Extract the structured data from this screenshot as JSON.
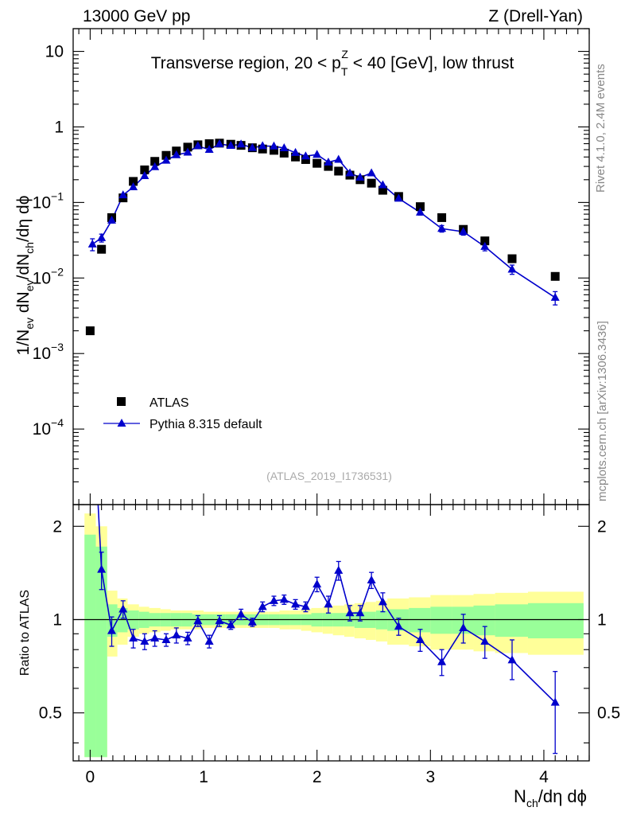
{
  "header": {
    "left": "13000 GeV pp",
    "right": "Z (Drell-Yan)"
  },
  "side_text": {
    "rivet": "Rivet 4.1.0,  2.4M events",
    "mcplots": "mcplots.cern.ch [arXiv:1306.3436]"
  },
  "colors": {
    "mc": "#0000cc",
    "data": "#000000",
    "band_inner": "#99ff99",
    "band_outer": "#ffff99"
  },
  "chart_data": {
    "type": "scatter",
    "title": "Transverse region, 20 < p_T^Z < 40 [GeV], low thrust",
    "title_parts": {
      "before": "Transverse region, 20 < p",
      "sup": "Z",
      "sub": "T",
      "after": " < 40 [GeV], low thrust"
    },
    "watermark": "(ATLAS_2019_I1736531)",
    "xlabel": "N_ch/dη dϕ",
    "xlabel_parts": {
      "main": "N",
      "sub": "ch",
      "rest": "/dη dϕ"
    },
    "ylabel": "1/N_ev dN_ev/dN_ch/dη dϕ",
    "ylabel_ratio": "Ratio to ATLAS",
    "xlim": [
      -0.15,
      4.4
    ],
    "ylim": [
      1e-05,
      20
    ],
    "ylim_ratio": [
      0.35,
      2.35
    ],
    "x_ticks": [
      "0",
      "1",
      "2",
      "3",
      "4"
    ],
    "y_ticks": [
      "10",
      "1",
      "10^-1",
      "10^-2",
      "10^-3",
      "10^-4"
    ],
    "y_ticks_ratio": [
      "2",
      "1",
      "0.5"
    ],
    "legend": {
      "position": "lower-left",
      "entries": [
        "ATLAS",
        "Pythia 8.315 default"
      ]
    },
    "series": [
      {
        "name": "ATLAS",
        "marker": "square",
        "x": [
          0.0,
          0.1,
          0.19,
          0.29,
          0.38,
          0.48,
          0.57,
          0.67,
          0.76,
          0.86,
          0.95,
          1.05,
          1.14,
          1.24,
          1.33,
          1.43,
          1.52,
          1.62,
          1.71,
          1.81,
          1.9,
          2.0,
          2.1,
          2.19,
          2.29,
          2.38,
          2.48,
          2.58,
          2.72,
          2.91,
          3.1,
          3.29,
          3.48,
          3.72,
          4.1
        ],
        "y": [
          0.002,
          0.024,
          0.063,
          0.115,
          0.19,
          0.27,
          0.35,
          0.42,
          0.48,
          0.54,
          0.58,
          0.6,
          0.61,
          0.59,
          0.57,
          0.53,
          0.51,
          0.49,
          0.45,
          0.4,
          0.37,
          0.33,
          0.3,
          0.26,
          0.23,
          0.2,
          0.18,
          0.145,
          0.12,
          0.088,
          0.063,
          0.044,
          0.031,
          0.018,
          0.0105
        ]
      },
      {
        "name": "Pythia 8.315 default",
        "marker": "triangle",
        "x": [
          0.02,
          0.1,
          0.19,
          0.29,
          0.38,
          0.48,
          0.57,
          0.67,
          0.76,
          0.86,
          0.95,
          1.05,
          1.14,
          1.24,
          1.33,
          1.43,
          1.52,
          1.62,
          1.71,
          1.81,
          1.9,
          2.0,
          2.1,
          2.19,
          2.29,
          2.38,
          2.48,
          2.58,
          2.72,
          2.91,
          3.1,
          3.29,
          3.48,
          3.72,
          4.1
        ],
        "y": [
          0.028,
          0.034,
          0.058,
          0.125,
          0.16,
          0.225,
          0.295,
          0.36,
          0.425,
          0.46,
          0.56,
          0.5,
          0.595,
          0.565,
          0.59,
          0.53,
          0.56,
          0.555,
          0.525,
          0.455,
          0.41,
          0.43,
          0.34,
          0.37,
          0.245,
          0.215,
          0.245,
          0.17,
          0.113,
          0.074,
          0.045,
          0.041,
          0.026,
          0.013,
          0.0055
        ],
        "err_rel": [
          0.18,
          0.12,
          0.08,
          0.06,
          0.05,
          0.05,
          0.04,
          0.04,
          0.04,
          0.04,
          0.04,
          0.04,
          0.04,
          0.04,
          0.04,
          0.04,
          0.04,
          0.04,
          0.04,
          0.04,
          0.04,
          0.05,
          0.05,
          0.05,
          0.05,
          0.05,
          0.06,
          0.07,
          0.07,
          0.08,
          0.1,
          0.1,
          0.12,
          0.14,
          0.2
        ]
      }
    ],
    "ratio": {
      "x": [
        0.1,
        0.19,
        0.29,
        0.38,
        0.48,
        0.57,
        0.67,
        0.76,
        0.86,
        0.95,
        1.05,
        1.14,
        1.24,
        1.33,
        1.43,
        1.52,
        1.62,
        1.71,
        1.81,
        1.9,
        2.0,
        2.1,
        2.19,
        2.29,
        2.38,
        2.48,
        2.58,
        2.72,
        2.91,
        3.1,
        3.29,
        3.48,
        3.72,
        4.1
      ],
      "values": [
        1.45,
        0.92,
        1.08,
        0.87,
        0.85,
        0.87,
        0.86,
        0.89,
        0.87,
        0.99,
        0.85,
        0.99,
        0.96,
        1.04,
        0.98,
        1.1,
        1.15,
        1.16,
        1.12,
        1.1,
        1.3,
        1.12,
        1.44,
        1.05,
        1.05,
        1.34,
        1.14,
        0.95,
        0.86,
        0.73,
        0.94,
        0.85,
        0.74,
        0.54
      ],
      "err_low": [
        0.2,
        0.1,
        0.07,
        0.06,
        0.05,
        0.05,
        0.04,
        0.05,
        0.04,
        0.04,
        0.04,
        0.04,
        0.03,
        0.04,
        0.03,
        0.04,
        0.04,
        0.04,
        0.04,
        0.04,
        0.07,
        0.07,
        0.1,
        0.06,
        0.06,
        0.08,
        0.08,
        0.06,
        0.07,
        0.07,
        0.1,
        0.1,
        0.1,
        0.17
      ],
      "err_high": [
        0.2,
        0.1,
        0.07,
        0.06,
        0.05,
        0.05,
        0.04,
        0.05,
        0.04,
        0.04,
        0.04,
        0.04,
        0.03,
        0.04,
        0.03,
        0.04,
        0.04,
        0.04,
        0.04,
        0.04,
        0.07,
        0.07,
        0.1,
        0.06,
        0.06,
        0.08,
        0.08,
        0.06,
        0.07,
        0.07,
        0.1,
        0.1,
        0.12,
        0.14
      ],
      "band_edges": [
        -0.05,
        0.05,
        0.15,
        0.24,
        0.33,
        0.43,
        0.52,
        0.62,
        0.71,
        0.81,
        0.9,
        1.0,
        1.1,
        1.19,
        1.29,
        1.38,
        1.48,
        1.57,
        1.67,
        1.76,
        1.86,
        1.95,
        2.05,
        2.14,
        2.24,
        2.33,
        2.43,
        2.52,
        2.62,
        2.81,
        3.0,
        3.19,
        3.38,
        3.57,
        3.86,
        4.35
      ],
      "band_inner": [
        0.88,
        0.72,
        0.12,
        0.09,
        0.07,
        0.06,
        0.05,
        0.05,
        0.05,
        0.05,
        0.04,
        0.04,
        0.04,
        0.04,
        0.04,
        0.04,
        0.04,
        0.04,
        0.04,
        0.04,
        0.04,
        0.05,
        0.05,
        0.05,
        0.05,
        0.06,
        0.06,
        0.07,
        0.08,
        0.09,
        0.1,
        0.1,
        0.11,
        0.12,
        0.13
      ],
      "band_outer": [
        1.2,
        1.0,
        0.24,
        0.17,
        0.12,
        0.1,
        0.09,
        0.08,
        0.07,
        0.07,
        0.07,
        0.06,
        0.06,
        0.06,
        0.06,
        0.06,
        0.06,
        0.06,
        0.07,
        0.07,
        0.08,
        0.09,
        0.1,
        0.11,
        0.12,
        0.13,
        0.14,
        0.15,
        0.17,
        0.18,
        0.2,
        0.2,
        0.21,
        0.22,
        0.23
      ]
    }
  }
}
